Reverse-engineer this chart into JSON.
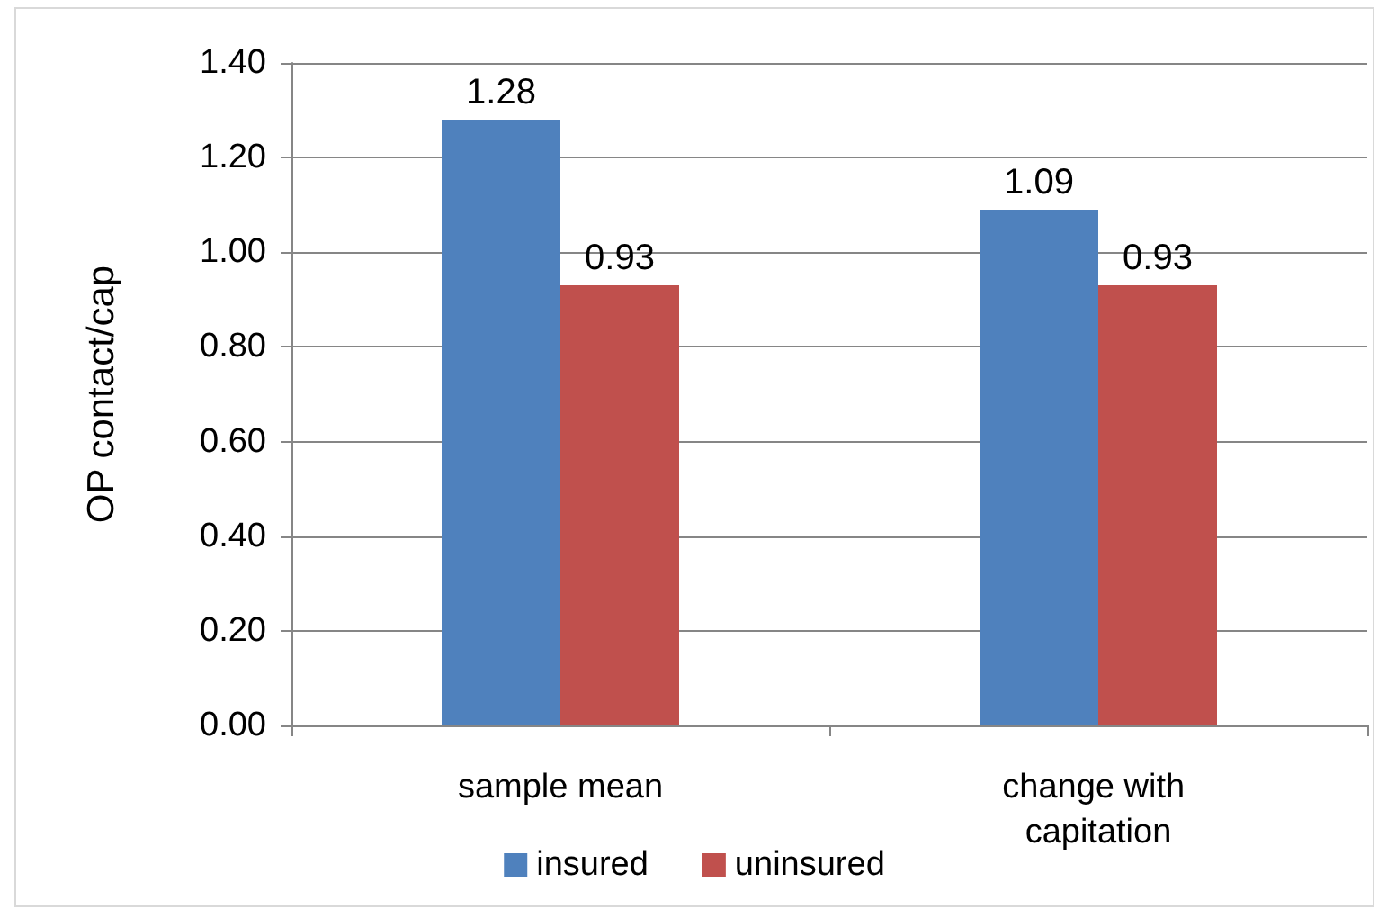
{
  "chart_data": {
    "type": "bar",
    "ylabel": "OP contact/cap",
    "categories": [
      "sample mean",
      "change with capitation"
    ],
    "series": [
      {
        "name": "insured",
        "color": "#4f81bd",
        "values": [
          1.28,
          1.09
        ]
      },
      {
        "name": "uninsured",
        "color": "#c0504d",
        "values": [
          0.93,
          0.93
        ]
      }
    ],
    "ylim": [
      0,
      1.4
    ],
    "yticks": [
      {
        "value": 0,
        "label": "0.00"
      },
      {
        "value": 0.2,
        "label": "0.20"
      },
      {
        "value": 0.4,
        "label": "0.40"
      },
      {
        "value": 0.6,
        "label": "0.60"
      },
      {
        "value": 0.8,
        "label": "0.80"
      },
      {
        "value": 1,
        "label": "1.00"
      },
      {
        "value": 1.2,
        "label": "1.20"
      },
      {
        "value": 1.4,
        "label": "1.40"
      }
    ],
    "grid": "y",
    "legend": "bottom",
    "data_labels": true
  }
}
